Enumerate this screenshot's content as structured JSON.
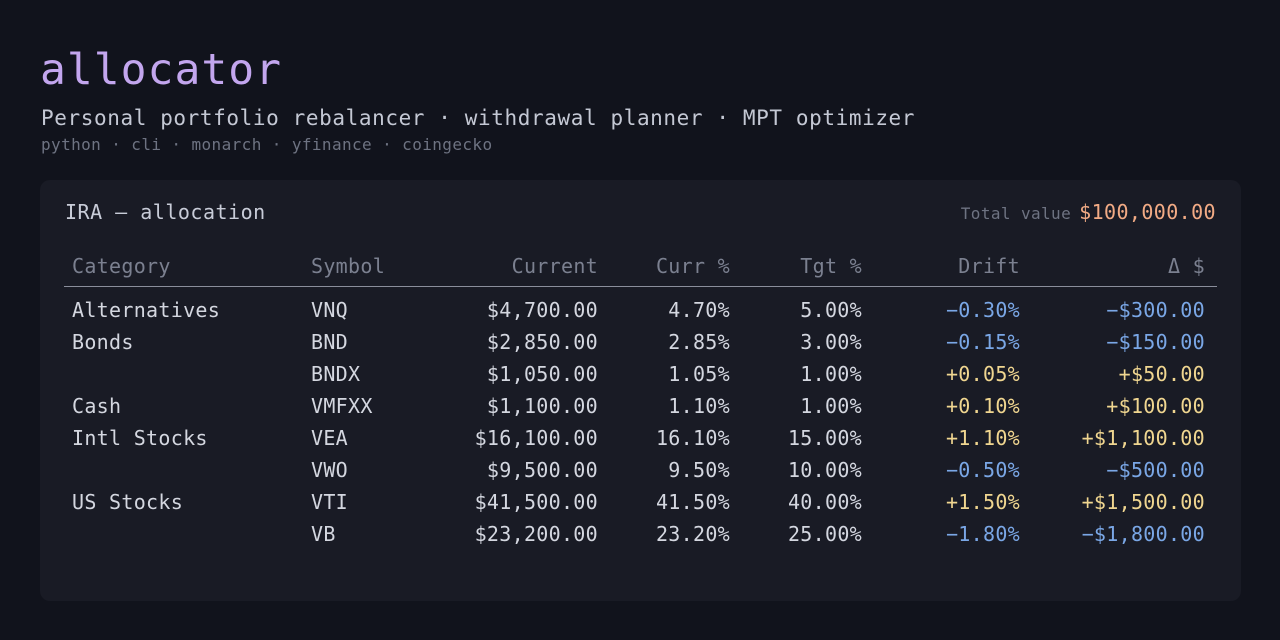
{
  "header": {
    "title": "allocator",
    "subtitle": "Personal portfolio rebalancer · withdrawal planner · MPT optimizer",
    "tagline": "python · cli · monarch · yfinance · coingecko"
  },
  "card": {
    "title": "IRA — allocation",
    "total_label": "Total value",
    "total_value": "$100,000.00"
  },
  "table": {
    "columns": {
      "category": "Category",
      "symbol": "Symbol",
      "current": "Current",
      "curr_pct": "Curr %",
      "tgt_pct": "Tgt %",
      "drift": "Drift",
      "delta": "Δ $"
    },
    "rows": [
      {
        "category": "Alternatives",
        "symbol": "VNQ",
        "current": "$4,700.00",
        "curr_pct": "4.70%",
        "tgt_pct": "5.00%",
        "drift": "−0.30%",
        "delta": "−$300.00",
        "sign": "neg"
      },
      {
        "category": "Bonds",
        "symbol": "BND",
        "current": "$2,850.00",
        "curr_pct": "2.85%",
        "tgt_pct": "3.00%",
        "drift": "−0.15%",
        "delta": "−$150.00",
        "sign": "neg"
      },
      {
        "category": "",
        "symbol": "BNDX",
        "current": "$1,050.00",
        "curr_pct": "1.05%",
        "tgt_pct": "1.00%",
        "drift": "+0.05%",
        "delta": "+$50.00",
        "sign": "pos"
      },
      {
        "category": "Cash",
        "symbol": "VMFXX",
        "current": "$1,100.00",
        "curr_pct": "1.10%",
        "tgt_pct": "1.00%",
        "drift": "+0.10%",
        "delta": "+$100.00",
        "sign": "pos"
      },
      {
        "category": "Intl Stocks",
        "symbol": "VEA",
        "current": "$16,100.00",
        "curr_pct": "16.10%",
        "tgt_pct": "15.00%",
        "drift": "+1.10%",
        "delta": "+$1,100.00",
        "sign": "pos"
      },
      {
        "category": "",
        "symbol": "VWO",
        "current": "$9,500.00",
        "curr_pct": "9.50%",
        "tgt_pct": "10.00%",
        "drift": "−0.50%",
        "delta": "−$500.00",
        "sign": "neg"
      },
      {
        "category": "US Stocks",
        "symbol": "VTI",
        "current": "$41,500.00",
        "curr_pct": "41.50%",
        "tgt_pct": "40.00%",
        "drift": "+1.50%",
        "delta": "+$1,500.00",
        "sign": "pos"
      },
      {
        "category": "",
        "symbol": "VB",
        "current": "$23,200.00",
        "curr_pct": "23.20%",
        "tgt_pct": "25.00%",
        "drift": "−1.80%",
        "delta": "−$1,800.00",
        "sign": "neg"
      }
    ]
  },
  "colors": {
    "background": "#11131c",
    "card": "#191b25",
    "title_accent": "#c3a6ee",
    "total_accent": "#f2ab85",
    "negative": "#7aa7e6",
    "positive": "#f0d690"
  }
}
